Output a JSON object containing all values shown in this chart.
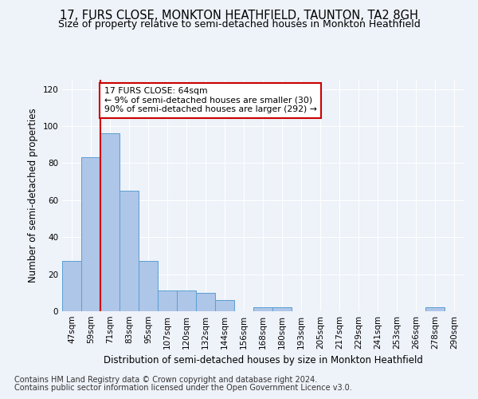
{
  "title": "17, FURS CLOSE, MONKTON HEATHFIELD, TAUNTON, TA2 8GH",
  "subtitle": "Size of property relative to semi-detached houses in Monkton Heathfield",
  "xlabel": "Distribution of semi-detached houses by size in Monkton Heathfield",
  "ylabel": "Number of semi-detached properties",
  "footer1": "Contains HM Land Registry data © Crown copyright and database right 2024.",
  "footer2": "Contains public sector information licensed under the Open Government Licence v3.0.",
  "categories": [
    "47sqm",
    "59sqm",
    "71sqm",
    "83sqm",
    "95sqm",
    "107sqm",
    "120sqm",
    "132sqm",
    "144sqm",
    "156sqm",
    "168sqm",
    "180sqm",
    "193sqm",
    "205sqm",
    "217sqm",
    "229sqm",
    "241sqm",
    "253sqm",
    "266sqm",
    "278sqm",
    "290sqm"
  ],
  "values": [
    27,
    83,
    96,
    65,
    27,
    11,
    11,
    10,
    6,
    0,
    2,
    2,
    0,
    0,
    0,
    0,
    0,
    0,
    0,
    2,
    0
  ],
  "bar_color": "#aec6e8",
  "bar_edge_color": "#5a9fd4",
  "vline_x": 1.5,
  "annotation_text": "17 FURS CLOSE: 64sqm\n← 9% of semi-detached houses are smaller (30)\n90% of semi-detached houses are larger (292) →",
  "annotation_box_color": "#ffffff",
  "annotation_box_edge_color": "#cc0000",
  "vline_color": "#cc0000",
  "ylim": [
    0,
    125
  ],
  "yticks": [
    0,
    20,
    40,
    60,
    80,
    100,
    120
  ],
  "background_color": "#eef2f9",
  "grid_color": "#ffffff",
  "title_fontsize": 10.5,
  "subtitle_fontsize": 9,
  "axis_label_fontsize": 8.5,
  "tick_fontsize": 7.5,
  "footer_fontsize": 7
}
